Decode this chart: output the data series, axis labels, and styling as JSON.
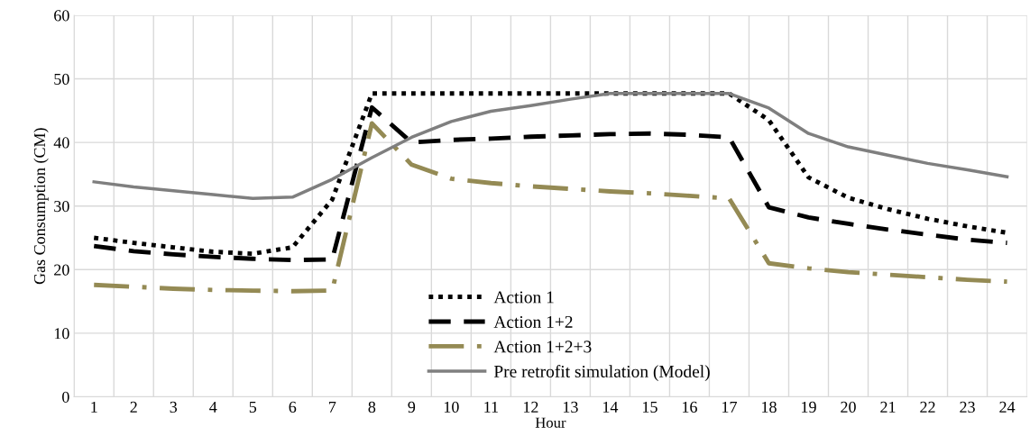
{
  "chart_data": {
    "type": "line",
    "xlabel": "Hour",
    "ylabel": "Gas Consumption (CM)",
    "categories": [
      "1",
      "2",
      "3",
      "4",
      "5",
      "6",
      "7",
      "8",
      "9",
      "10",
      "11",
      "12",
      "13",
      "14",
      "15",
      "16",
      "17",
      "18",
      "19",
      "20",
      "21",
      "22",
      "23",
      "24"
    ],
    "series": [
      {
        "name": "Action 1",
        "color": "#000000",
        "line_style": "dotted",
        "values": [
          25,
          24.2,
          23.5,
          22.8,
          22.5,
          23.5,
          31,
          47.7,
          47.7,
          47.7,
          47.7,
          47.7,
          47.7,
          47.7,
          47.7,
          47.7,
          47.7,
          43.5,
          34.5,
          31.3,
          29.5,
          28,
          26.8,
          25.8
        ]
      },
      {
        "name": "Action 1+2",
        "color": "#000000",
        "line_style": "dashed",
        "values": [
          23.7,
          22.9,
          22.4,
          22,
          21.7,
          21.5,
          21.6,
          45.5,
          40,
          40.4,
          40.6,
          40.9,
          41.1,
          41.3,
          41.4,
          41.2,
          40.8,
          29.8,
          28.2,
          27.2,
          26.3,
          25.5,
          24.7,
          24.2
        ]
      },
      {
        "name": "Action 1+2+3",
        "color": "#948a54",
        "line_style": "dashdot",
        "values": [
          17.6,
          17.3,
          17,
          16.8,
          16.7,
          16.6,
          16.7,
          43,
          36.5,
          34.3,
          33.6,
          33.1,
          32.7,
          32.3,
          32,
          31.6,
          31.2,
          21,
          20.2,
          19.6,
          19.2,
          18.8,
          18.4,
          18.1
        ]
      },
      {
        "name": "Pre retrofit simulation (Model)",
        "color": "#7f7f7f",
        "line_style": "solid",
        "values": [
          33.8,
          33,
          32.4,
          31.8,
          31.2,
          31.4,
          34.2,
          37.6,
          40.8,
          43.3,
          44.9,
          45.8,
          46.8,
          47.7,
          47.7,
          47.7,
          47.7,
          45.4,
          41.4,
          39.3,
          38,
          36.7,
          35.7,
          34.6
        ]
      }
    ],
    "ylim": [
      0,
      60
    ],
    "yticks": [
      0,
      10,
      20,
      30,
      40,
      50,
      60
    ],
    "grid": true,
    "legend": "bottom",
    "marker": "none"
  }
}
